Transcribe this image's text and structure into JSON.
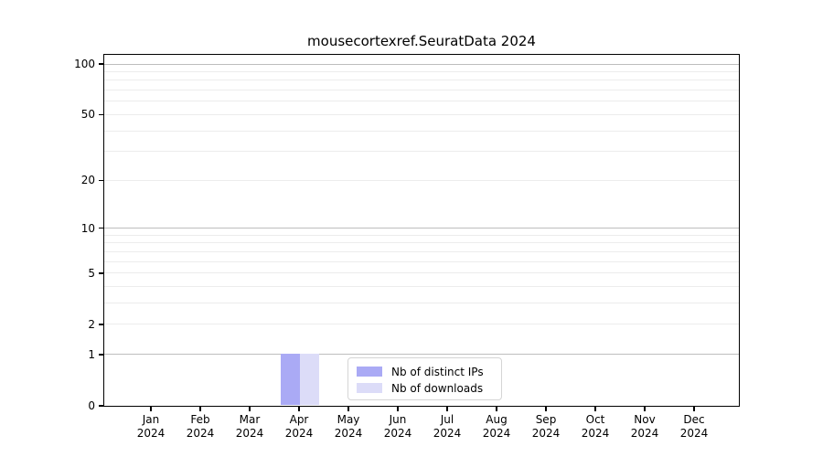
{
  "chart_data": {
    "type": "bar",
    "title": "mousecortexref.SeuratData 2024",
    "categories": [
      "Jan 2024",
      "Feb 2024",
      "Mar 2024",
      "Apr 2024",
      "May 2024",
      "Jun 2024",
      "Jul 2024",
      "Aug 2024",
      "Sep 2024",
      "Oct 2024",
      "Nov 2024",
      "Dec 2024"
    ],
    "series": [
      {
        "name": "Nb of distinct IPs",
        "color": "#aaaaf5",
        "values": [
          0,
          0,
          0,
          1,
          0,
          0,
          0,
          0,
          0,
          0,
          0,
          0
        ]
      },
      {
        "name": "Nb of downloads",
        "color": "#dcdcf8",
        "values": [
          0,
          0,
          0,
          1,
          0,
          0,
          0,
          0,
          0,
          0,
          0,
          0
        ]
      }
    ],
    "y_axis": {
      "scale": "log1p",
      "tick_values": [
        0,
        1,
        2,
        5,
        10,
        20,
        50,
        100
      ],
      "range": [
        0,
        115
      ]
    },
    "x_axis": {
      "tick_label_years_on_second_line": true
    },
    "grid": {
      "major_values": [
        1,
        10,
        100
      ],
      "minor_values": [
        2,
        3,
        4,
        5,
        6,
        7,
        8,
        9,
        20,
        30,
        40,
        50,
        60,
        70,
        80,
        90
      ],
      "major_color": "#bdbdbd",
      "minor_color": "#ececec"
    },
    "legend": {
      "position": "lower center",
      "entries": [
        "Nb of distinct IPs",
        "Nb of downloads"
      ]
    },
    "frame_color": "#000000",
    "background_color": "#ffffff"
  }
}
